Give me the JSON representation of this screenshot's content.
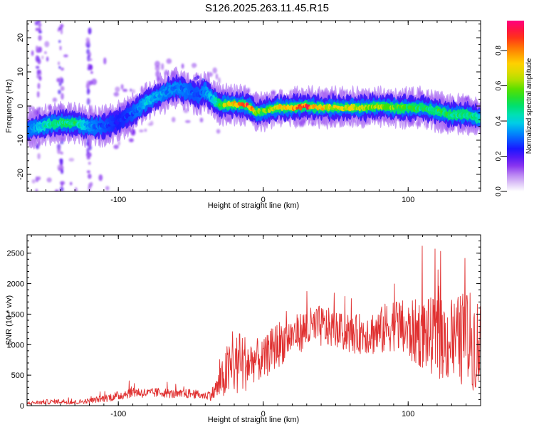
{
  "title": "S126.2025.263.11.45.R15",
  "colors": {
    "frame": "#000000",
    "snr_line": "#e03030",
    "background": "#ffffff"
  },
  "chart_data": [
    {
      "type": "heatmap",
      "name": "spectrogram",
      "xlabel": "Height of straight line (km)",
      "ylabel": "Frequency (Hz)",
      "xlim": [
        -163,
        150
      ],
      "ylim": [
        -25,
        25
      ],
      "x_ticks": [
        -100,
        0,
        100
      ],
      "x_tick_labels": [
        "-100",
        "0",
        "100"
      ],
      "y_ticks": [
        20,
        10,
        0,
        -10,
        -20
      ],
      "y_tick_labels": [
        "20",
        "10",
        "0",
        "-10",
        "-20"
      ],
      "colorbar": {
        "label": "Normalized spectral amplitude",
        "range": [
          0.0,
          0.97
        ],
        "ticks": [
          0.0,
          0.2,
          0.4,
          0.6,
          0.8
        ],
        "tick_labels": [
          "0.0",
          "0.2",
          "0.4",
          "0.6",
          "0.8"
        ],
        "colormap": [
          "#ffffff",
          "#c79bf2",
          "#7a1cf0",
          "#1a18ff",
          "#0080ff",
          "#00e0e0",
          "#00e070",
          "#40e000",
          "#c8e000",
          "#ffd000",
          "#ff8000",
          "#ff2020",
          "#ff0080"
        ]
      },
      "ridge": {
        "x": [
          -163,
          -150,
          -140,
          -130,
          -120,
          -110,
          -100,
          -90,
          -80,
          -70,
          -60,
          -50,
          -45,
          -40,
          -35,
          -30,
          -25,
          -20,
          -10,
          -5,
          0,
          10,
          20,
          30,
          40,
          50,
          60,
          70,
          80,
          90,
          100,
          110,
          120,
          130,
          140,
          150
        ],
        "freq": [
          -7,
          -5.5,
          -5,
          -5,
          -6,
          -6,
          -4.5,
          -2,
          1.5,
          3.5,
          5.5,
          4,
          3,
          4.5,
          2,
          0.5,
          0.5,
          0.5,
          0,
          -2,
          -1.5,
          -0.5,
          -0.5,
          0,
          -0.5,
          -0.5,
          -0.5,
          -0.5,
          0,
          -0.5,
          -0.5,
          -0.5,
          -1.5,
          -2.5,
          -2.5,
          -3.5
        ],
        "amplitude": [
          0.3,
          0.45,
          0.5,
          0.5,
          0.35,
          0.3,
          0.25,
          0.3,
          0.4,
          0.35,
          0.35,
          0.3,
          0.3,
          0.35,
          0.4,
          0.55,
          0.7,
          0.75,
          0.9,
          0.65,
          0.6,
          0.7,
          0.8,
          0.9,
          0.75,
          0.7,
          0.7,
          0.65,
          0.7,
          0.6,
          0.55,
          0.5,
          0.55,
          0.5,
          0.5,
          0.45
        ]
      },
      "secondary_band": {
        "x": [
          -100,
          -85,
          -70,
          -60,
          -50,
          -45,
          -40,
          -35
        ],
        "freq": [
          -2,
          0.5,
          1.5,
          3.5,
          6,
          8,
          6,
          4
        ]
      }
    },
    {
      "type": "line",
      "name": "snr",
      "xlabel": "Height of straight line (km)",
      "ylabel": "SNR (10 * v/v)",
      "xlim": [
        -163,
        150
      ],
      "ylim": [
        0,
        2800
      ],
      "x_ticks": [
        -100,
        0,
        100
      ],
      "x_tick_labels": [
        "-100",
        "0",
        "100"
      ],
      "y_ticks": [
        0,
        500,
        1000,
        1500,
        2000,
        2500
      ],
      "y_tick_labels": [
        "0",
        "500",
        "1000",
        "1500",
        "2000",
        "2500"
      ],
      "series": [
        {
          "name": "SNR envelope",
          "x": [
            -163,
            -150,
            -140,
            -130,
            -120,
            -110,
            -100,
            -90,
            -80,
            -70,
            -60,
            -50,
            -40,
            -35,
            -30,
            -25,
            -20,
            -15,
            -10,
            -5,
            0,
            5,
            10,
            20,
            30,
            40,
            50,
            60,
            70,
            80,
            90,
            100,
            110,
            120,
            130,
            140,
            150
          ],
          "mean": [
            40,
            60,
            70,
            55,
            80,
            120,
            160,
            230,
            200,
            220,
            180,
            200,
            160,
            200,
            350,
            550,
            650,
            700,
            700,
            760,
            720,
            900,
            1000,
            1150,
            1250,
            1300,
            1250,
            1150,
            1200,
            1200,
            1350,
            1200,
            1200,
            1100,
            1050,
            1100,
            1000
          ],
          "spread": [
            30,
            40,
            40,
            40,
            40,
            60,
            80,
            90,
            80,
            80,
            70,
            80,
            60,
            120,
            250,
            450,
            500,
            550,
            400,
            350,
            350,
            350,
            400,
            300,
            350,
            350,
            300,
            300,
            350,
            400,
            450,
            500,
            600,
            650,
            700,
            800,
            800
          ]
        }
      ]
    }
  ]
}
